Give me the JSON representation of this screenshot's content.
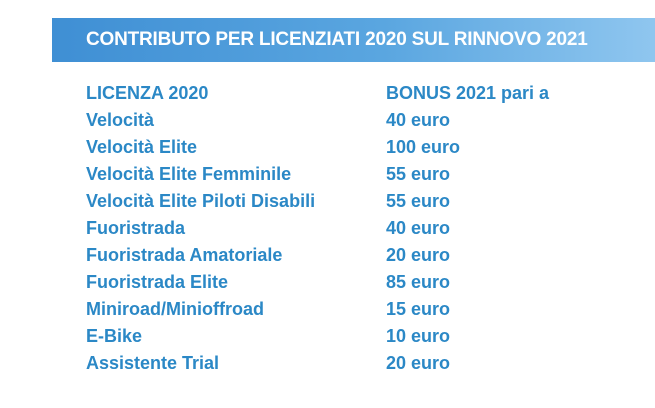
{
  "header": {
    "title": "CONTRIBUTO PER LICENZIATI 2020 SUL RINNOVO 2021"
  },
  "colors": {
    "header_band_start": "#3f8fd4",
    "header_band_end": "#8fc6ef",
    "text_blue": "#2b88c6"
  },
  "table": {
    "columns": [
      "LICENZA 2020",
      "BONUS 2021 pari a"
    ],
    "rows": [
      {
        "license": "Velocità",
        "bonus": "40 euro"
      },
      {
        "license": "Velocità Elite",
        "bonus": "100 euro"
      },
      {
        "license": "Velocità Elite Femminile",
        "bonus": "55 euro"
      },
      {
        "license": "Velocità Elite Piloti Disabili",
        "bonus": "55 euro"
      },
      {
        "license": "Fuoristrada",
        "bonus": "40 euro"
      },
      {
        "license": "Fuoristrada Amatoriale",
        "bonus": "20 euro"
      },
      {
        "license": "Fuoristrada Elite",
        "bonus": "85 euro"
      },
      {
        "license": "Miniroad/Minioffroad",
        "bonus": "15 euro"
      },
      {
        "license": "E-Bike",
        "bonus": "10 euro"
      },
      {
        "license": "Assistente Trial",
        "bonus": "20 euro"
      }
    ]
  }
}
